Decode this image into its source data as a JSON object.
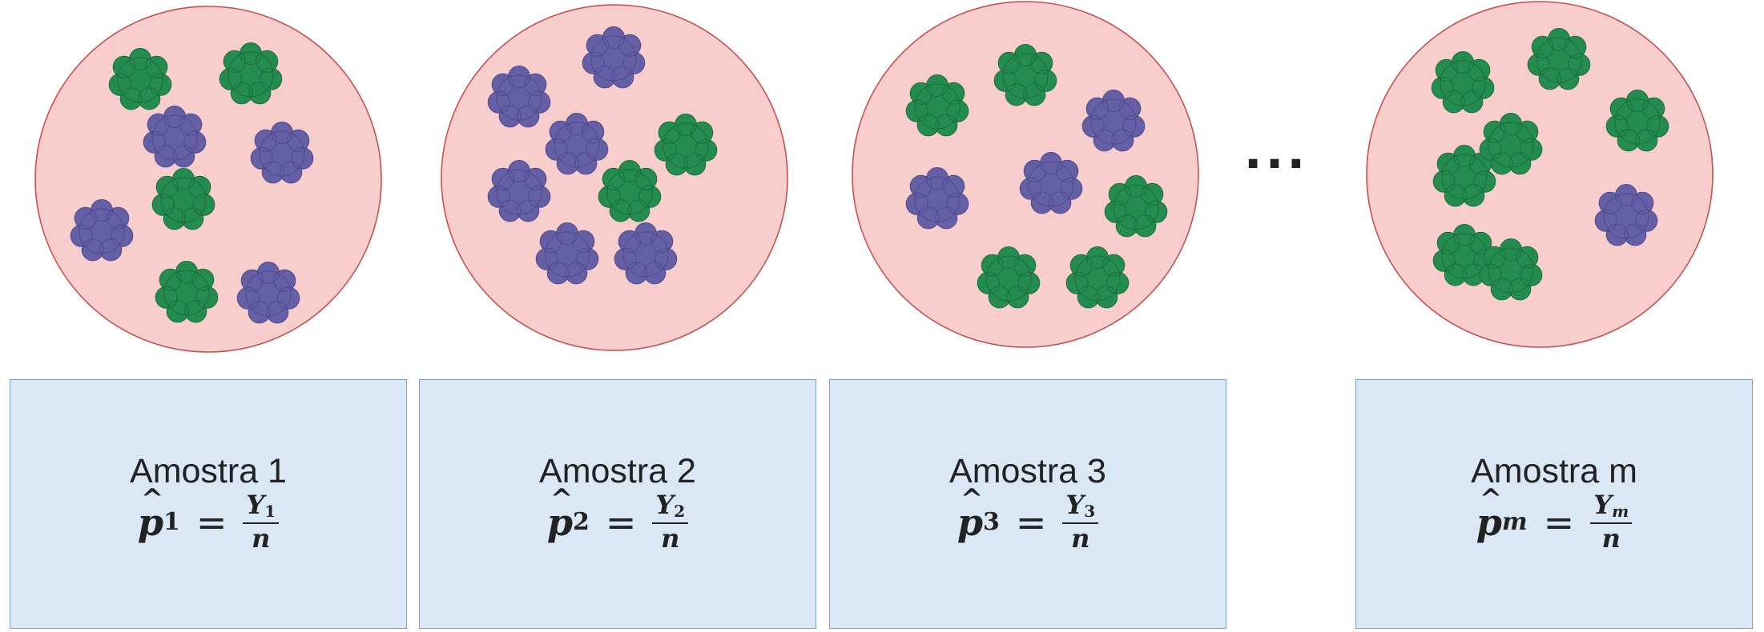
{
  "colors": {
    "circle_fill": "#f8cecc",
    "circle_stroke": "#c75050",
    "green_blob": "#238c4e",
    "purple_blob": "#6560a6",
    "card_fill": "#dae8f5",
    "card_stroke": "#7d9fd0"
  },
  "ellipsis": "···",
  "samples": [
    {
      "label": "Amostra 1",
      "formula": {
        "p": "p",
        "hat": "^",
        "sub": "1",
        "eq": "=",
        "num": "Y",
        "num_sub": "1",
        "den": "n"
      },
      "blobs": [
        "green",
        "green",
        "purple",
        "purple",
        "green",
        "purple",
        "green",
        "purple"
      ]
    },
    {
      "label": "Amostra 2",
      "formula": {
        "p": "p",
        "hat": "^",
        "sub": "2",
        "eq": "=",
        "num": "Y",
        "num_sub": "2",
        "den": "n"
      },
      "blobs": [
        "purple",
        "purple",
        "purple",
        "green",
        "purple",
        "green",
        "purple",
        "purple"
      ]
    },
    {
      "label": "Amostra 3",
      "formula": {
        "p": "p",
        "hat": "^",
        "sub": "3",
        "eq": "=",
        "num": "Y",
        "num_sub": "3",
        "den": "n"
      },
      "blobs": [
        "green",
        "green",
        "purple",
        "purple",
        "purple",
        "green",
        "green",
        "green"
      ]
    },
    {
      "label": "Amostra m",
      "formula": {
        "p": "p",
        "hat": "^",
        "sub": "m",
        "eq": "=",
        "num": "Y",
        "num_sub": "m",
        "den": "n"
      },
      "blobs": [
        "green",
        "green",
        "green",
        "green",
        "green",
        "purple",
        "green",
        "green"
      ]
    }
  ]
}
